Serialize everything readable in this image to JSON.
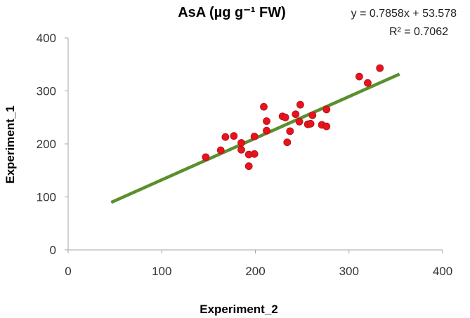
{
  "chart_data": {
    "type": "scatter",
    "title": "AsA (µg g⁻¹ FW)",
    "xlabel": "Experiment_2",
    "ylabel": "Experiment_1",
    "xlim": [
      0,
      400
    ],
    "ylim": [
      0,
      400
    ],
    "xticks": [
      "0",
      "100",
      "200",
      "300",
      "400"
    ],
    "yticks": [
      "0",
      "100",
      "200",
      "300",
      "400"
    ],
    "grid": false,
    "legend": "none",
    "annotations": {
      "equation": "y = 0.7858x + 53.578",
      "r_squared": "R² = 0.7062"
    },
    "trendline": {
      "slope": 0.7858,
      "intercept": 53.578,
      "x_range": [
        46,
        354
      ],
      "color": "#5B8F2E"
    },
    "series": [
      {
        "color": "#E8141B",
        "points": [
          {
            "x": 147,
            "y": 175
          },
          {
            "x": 163,
            "y": 188
          },
          {
            "x": 168,
            "y": 213
          },
          {
            "x": 177,
            "y": 215
          },
          {
            "x": 185,
            "y": 202
          },
          {
            "x": 185,
            "y": 189
          },
          {
            "x": 193,
            "y": 180
          },
          {
            "x": 193,
            "y": 158
          },
          {
            "x": 199,
            "y": 181
          },
          {
            "x": 199,
            "y": 214
          },
          {
            "x": 209,
            "y": 270
          },
          {
            "x": 212,
            "y": 243
          },
          {
            "x": 212,
            "y": 225
          },
          {
            "x": 229,
            "y": 252
          },
          {
            "x": 232,
            "y": 250
          },
          {
            "x": 234,
            "y": 203
          },
          {
            "x": 237,
            "y": 224
          },
          {
            "x": 243,
            "y": 256
          },
          {
            "x": 247,
            "y": 242
          },
          {
            "x": 248,
            "y": 274
          },
          {
            "x": 256,
            "y": 237
          },
          {
            "x": 259,
            "y": 238
          },
          {
            "x": 261,
            "y": 254
          },
          {
            "x": 271,
            "y": 236
          },
          {
            "x": 276,
            "y": 265
          },
          {
            "x": 276,
            "y": 233
          },
          {
            "x": 311,
            "y": 327
          },
          {
            "x": 320,
            "y": 315
          },
          {
            "x": 333,
            "y": 343
          }
        ]
      }
    ]
  }
}
